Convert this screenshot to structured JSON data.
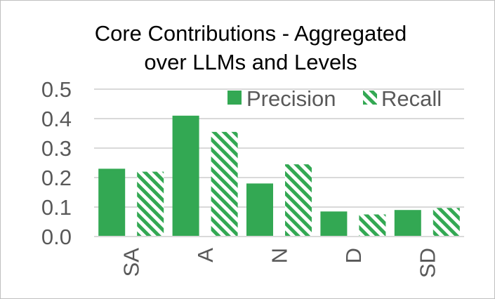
{
  "chart_data": {
    "type": "bar",
    "title_line1": "Core Contributions - Aggregated",
    "title_line2": "over LLMs and Levels",
    "xlabel": "",
    "ylabel": "",
    "categories": [
      "SA",
      "A",
      "N",
      "D",
      "SD"
    ],
    "series": [
      {
        "name": "Precision",
        "values": [
          0.23,
          0.41,
          0.18,
          0.085,
          0.09
        ],
        "pattern": "solid",
        "color": "#33a853"
      },
      {
        "name": "Recall",
        "values": [
          0.22,
          0.355,
          0.245,
          0.075,
          0.097
        ],
        "pattern": "diagonal-stripes",
        "color": "#33a853"
      }
    ],
    "ylim": [
      0,
      0.5
    ],
    "yticks": [
      "0.0",
      "0.1",
      "0.2",
      "0.3",
      "0.4",
      "0.5"
    ],
    "grid": true,
    "legend_position": "top-right"
  }
}
